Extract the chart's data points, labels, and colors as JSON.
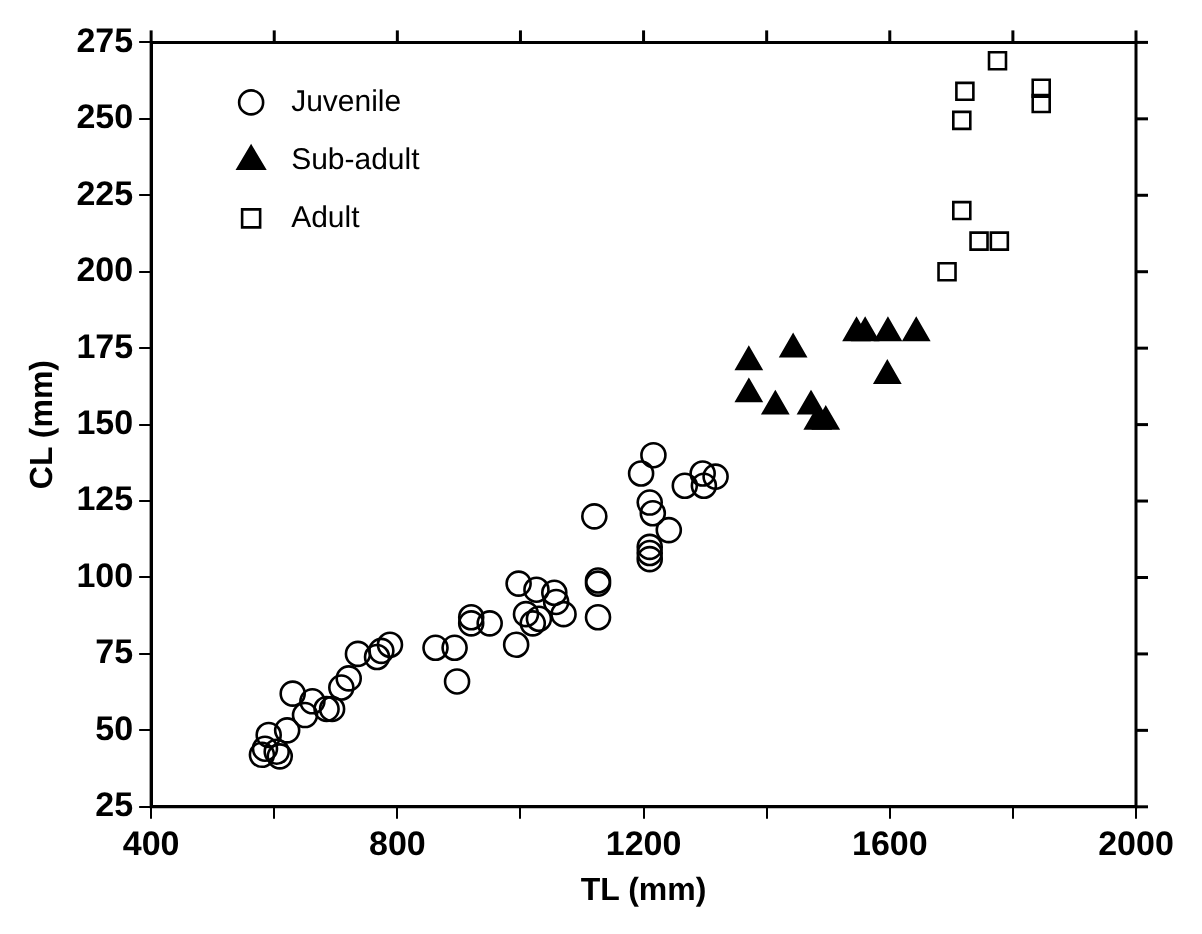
{
  "chart_data": {
    "type": "scatter",
    "xlabel": "TL (mm)",
    "ylabel": "CL (mm)",
    "xlim": [
      400,
      2000
    ],
    "xticks": [
      400,
      {
        "value": 600,
        "label": null
      },
      800,
      {
        "value": 1000,
        "label": null
      },
      1200,
      {
        "value": 1400,
        "label": null
      },
      1600,
      {
        "value": 1800,
        "label": null
      },
      2000
    ],
    "ylim": [
      25,
      275
    ],
    "yticks": [
      25,
      50,
      75,
      100,
      125,
      150,
      175,
      200,
      225,
      250,
      275
    ],
    "grid": false,
    "legend": "top left",
    "series": [
      {
        "name": "Juvenile",
        "color": "#000000",
        "marker": "circle",
        "x": [
          580,
          591,
          585,
          609,
          604,
          621,
          630,
          650,
          662,
          685,
          694,
          709,
          721,
          736,
          767,
          774,
          788,
          862,
          893,
          897,
          920,
          920,
          950,
          993,
          997,
          1009,
          1026,
          1020,
          1030,
          1055,
          1058,
          1070,
          1120,
          1126,
          1126,
          1126,
          1196,
          1210,
          1215,
          1210,
          1210,
          1210,
          1216,
          1241,
          1267,
          1296,
          1298,
          1317
        ],
        "values": [
          42,
          48.5,
          44,
          41.5,
          43,
          50,
          62,
          55,
          59.5,
          57,
          57,
          64,
          67,
          75,
          74,
          76,
          78,
          77,
          77,
          66,
          87,
          85,
          85,
          78,
          98,
          88,
          96,
          85,
          86.5,
          95,
          92,
          88,
          120,
          99,
          98,
          87,
          134,
          124.5,
          121,
          110,
          108,
          106,
          140,
          115.5,
          130,
          134,
          130,
          133
        ]
      },
      {
        "name": "Sub-adult",
        "color": "#000000",
        "marker": "triangle",
        "x": [
          1371,
          1443,
          1371,
          1414,
          1472,
          1483,
          1496,
          1546,
          1560,
          1597,
          1643,
          1596
        ],
        "values": [
          170.5,
          174.7,
          160,
          156,
          156,
          151,
          151,
          180,
          180,
          180,
          180,
          166
        ]
      },
      {
        "name": "Adult",
        "color": "#000000",
        "marker": "square",
        "x": [
          1775,
          1722,
          1846,
          1846,
          1717,
          1717,
          1745,
          1778,
          1693
        ],
        "values": [
          269,
          259,
          260,
          255,
          249.5,
          220,
          210,
          210,
          200
        ]
      }
    ]
  }
}
